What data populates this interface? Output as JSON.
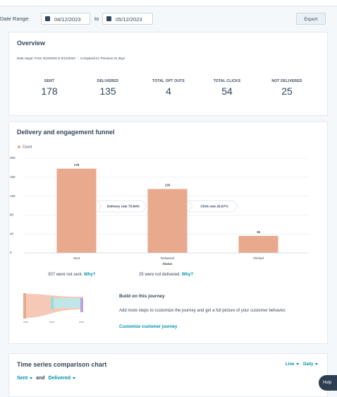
{
  "date_range": {
    "label": "Date Range:",
    "from": "04/12/2023",
    "separator": "to",
    "to": "05/12/2023",
    "export": "Export"
  },
  "overview": {
    "title": "Overview",
    "range": "Date range: From 4/12/2023 to 5/12/2023",
    "compared": "Compared to: Previous 31 days",
    "stats": [
      {
        "label": "SENT",
        "value": 178
      },
      {
        "label": "DELIVERED",
        "value": 135
      },
      {
        "label": "TOTAL OPT OUTS",
        "value": 4
      },
      {
        "label": "TOTAL CLICKS",
        "value": 54
      },
      {
        "label": "NOT DELIVERED",
        "value": 25
      }
    ]
  },
  "chart_data": {
    "type": "bar",
    "title": "Delivery and engagement funnel",
    "categories": [
      "Sent",
      "Delivered",
      "Clicked"
    ],
    "series": [
      {
        "name": "Count",
        "color": "#e8a98c",
        "values": [
          178,
          135,
          36
        ]
      }
    ],
    "ylim": [
      0,
      200
    ],
    "yticks": [
      0,
      40,
      80,
      120,
      160,
      200
    ],
    "grid": true,
    "x_label": "Status",
    "annotations": [
      "Delivery rate 75.84%",
      "Click rate 26.67%"
    ]
  },
  "notes": [
    {
      "text": "307 were not sent.",
      "link": "Why?"
    },
    {
      "text": "25 were not delivered.",
      "link": "Why?"
    }
  ],
  "journey": {
    "title": "Build on this journey",
    "text": "Add more steps to customize the journey and get a full picture of your customer behavior.",
    "link": "Customize customer journey"
  },
  "time_series": {
    "title": "Time series comparison chart",
    "view": "Line",
    "interval": "Daily",
    "metric_a": "Sent",
    "joiner": "and",
    "metric_b": "Delivered"
  },
  "help": "Help"
}
